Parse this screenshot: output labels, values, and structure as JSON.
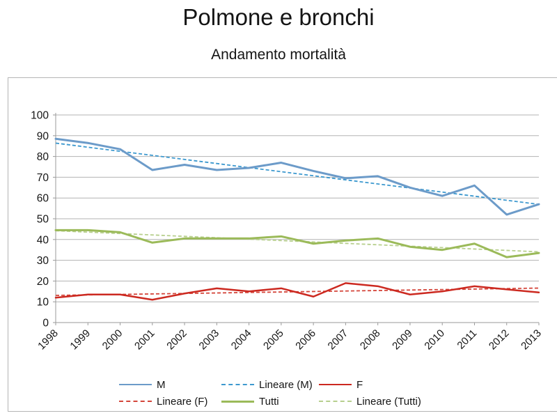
{
  "page": {
    "title": "Polmone e bronchi",
    "subtitle": "Andamento mortalità"
  },
  "chart_data": {
    "type": "line",
    "title": "Polmone e bronchi",
    "subtitle": "Andamento mortalità",
    "categories": [
      "1998",
      "1999",
      "2000",
      "2001",
      "2002",
      "2003",
      "2004",
      "2005",
      "2006",
      "2007",
      "2008",
      "2009",
      "2010",
      "2011",
      "2012",
      "2013"
    ],
    "series": [
      {
        "name": "M",
        "color": "#6c9bc9",
        "stroke_width": 3,
        "values": [
          88.5,
          86.5,
          83.5,
          73.5,
          76,
          73.5,
          74.5,
          77,
          73,
          69.5,
          70.5,
          65,
          61,
          66,
          52,
          57
        ]
      },
      {
        "name": "F",
        "color": "#cc2920",
        "stroke_width": 2.5,
        "values": [
          12,
          13.5,
          13.5,
          11,
          14,
          16.5,
          15,
          16.5,
          12.5,
          19,
          17.5,
          13.5,
          15,
          17.5,
          16,
          14.5
        ]
      },
      {
        "name": "Tutti",
        "color": "#9bba59",
        "stroke_width": 3,
        "values": [
          44.5,
          44.5,
          43.5,
          38.5,
          40.5,
          40.5,
          40.5,
          41.5,
          38,
          39.5,
          40.5,
          36.5,
          35,
          38,
          31.5,
          33.5
        ]
      }
    ],
    "trendlines": [
      {
        "name": "Lineare (M)",
        "source": "M",
        "color": "#3d99cf"
      },
      {
        "name": "Lineare (F)",
        "source": "F",
        "color": "#d4453a"
      },
      {
        "name": "Lineare (Tutti)",
        "source": "Tutti",
        "color": "#b7cf8d"
      }
    ],
    "ylim": [
      0,
      100
    ],
    "ytick_step": 10,
    "grid": true,
    "legend_position": "bottom",
    "legend_rows": [
      [
        {
          "label": "M",
          "color": "#6c9bc9",
          "style": "solid",
          "weight": 2
        },
        {
          "label": "Lineare (M)",
          "color": "#3d99cf",
          "style": "dashed",
          "weight": 2
        },
        {
          "label": "F",
          "color": "#cc2920",
          "style": "solid",
          "weight": 2
        }
      ],
      [
        {
          "label": "Lineare (F)",
          "color": "#d4453a",
          "style": "dashed",
          "weight": 2
        },
        {
          "label": "Tutti",
          "color": "#9bba59",
          "style": "solid",
          "weight": 3
        },
        {
          "label": "Lineare (Tutti)",
          "color": "#b7cf8d",
          "style": "dashed",
          "weight": 2
        }
      ]
    ],
    "colors": {
      "gridline": "#b3b3b3",
      "axis": "#9a9a9a",
      "text": "#141414"
    }
  }
}
